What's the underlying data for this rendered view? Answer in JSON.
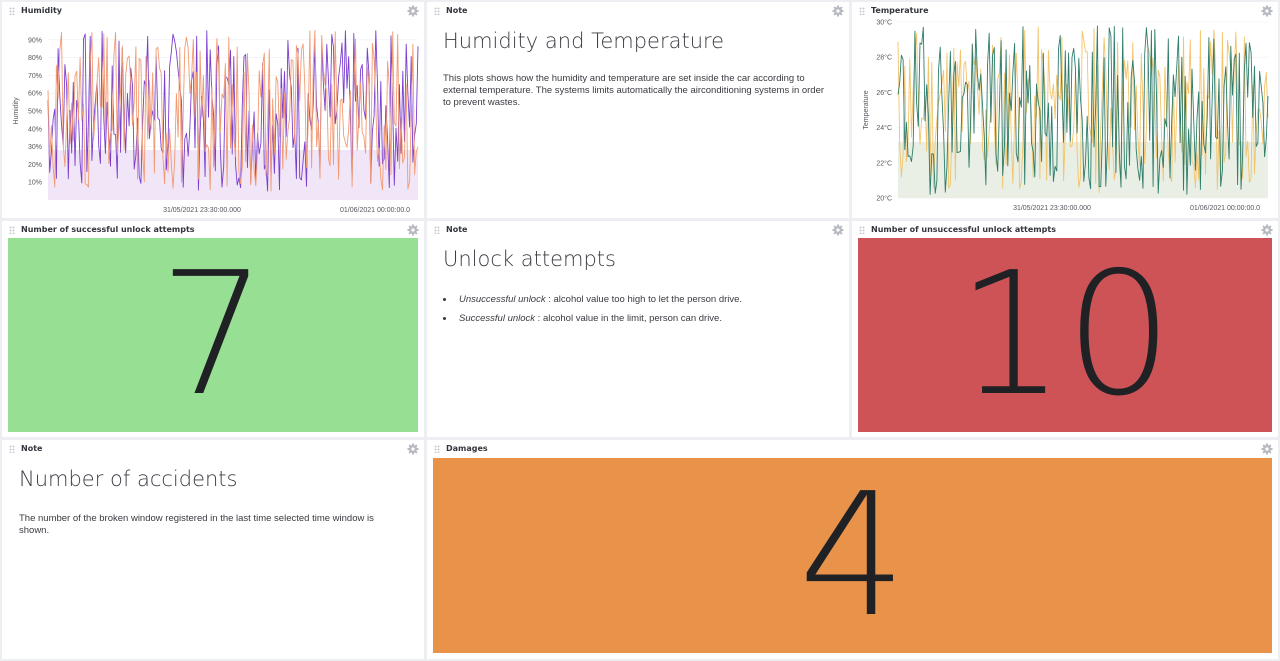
{
  "panels": {
    "humidity": {
      "title": "Humidity"
    },
    "note1": {
      "title": "Note",
      "heading": "Humidity and Temperature",
      "text": "This plots shows how the humidity and temperature are set inside the car according to external temperature. The systems limits automatically the airconditioning systems in order to prevent wastes."
    },
    "temperature": {
      "title": "Temperature"
    },
    "successful": {
      "title": "Number of successful unlock attempts",
      "value": "7",
      "color": "#96df93"
    },
    "note2": {
      "title": "Note",
      "heading": "Unlock attempts",
      "bullets": [
        {
          "term": "Unsuccessful unlock",
          "desc": " : alcohol value too high to let the person drive."
        },
        {
          "term": "Successful unlock",
          "desc": " : alcohol value in the limit, person can drive."
        }
      ]
    },
    "unsuccessful": {
      "title": "Number of unsuccessful unlock attempts",
      "value": "10",
      "color": "#cd5357"
    },
    "note3": {
      "title": "Note",
      "heading": "Number of accidents",
      "text": "The number of the broken window registered in the last time selected time window is shown."
    },
    "damages": {
      "title": "Damages",
      "value": "4",
      "color": "#e9924a"
    }
  },
  "icons": {
    "drag": "drag-handle-icon",
    "settings": "gear-icon"
  },
  "chart_data": [
    {
      "type": "line",
      "ylabel": "Humidity",
      "ylim": [
        0,
        100
      ],
      "y_ticks": [
        "10%",
        "20%",
        "30%",
        "40%",
        "50%",
        "60%",
        "70%",
        "80%",
        "90%"
      ],
      "x_ticks": [
        "31/05/2021 23:30:00.000",
        "01/06/2021 00:00:00.0"
      ],
      "series": [
        {
          "color": "#7b3fd0",
          "seed": 7,
          "min": 5,
          "max": 96
        },
        {
          "color": "#f29b73",
          "seed": 31,
          "min": 5,
          "max": 96
        }
      ]
    },
    {
      "type": "line",
      "ylabel": "Temperature",
      "ylim": [
        20,
        30
      ],
      "y_ticks": [
        "20°C",
        "22°C",
        "24°C",
        "26°C",
        "28°C",
        "30°C"
      ],
      "x_ticks": [
        "31/05/2021 23:30:00.000",
        "01/06/2021 00:00:00.0"
      ],
      "series": [
        {
          "color": "#f2c46b",
          "seed": 11,
          "min": 20.2,
          "max": 29.8
        },
        {
          "color": "#2f7d6b",
          "seed": 19,
          "min": 20.2,
          "max": 29.8
        }
      ]
    }
  ]
}
